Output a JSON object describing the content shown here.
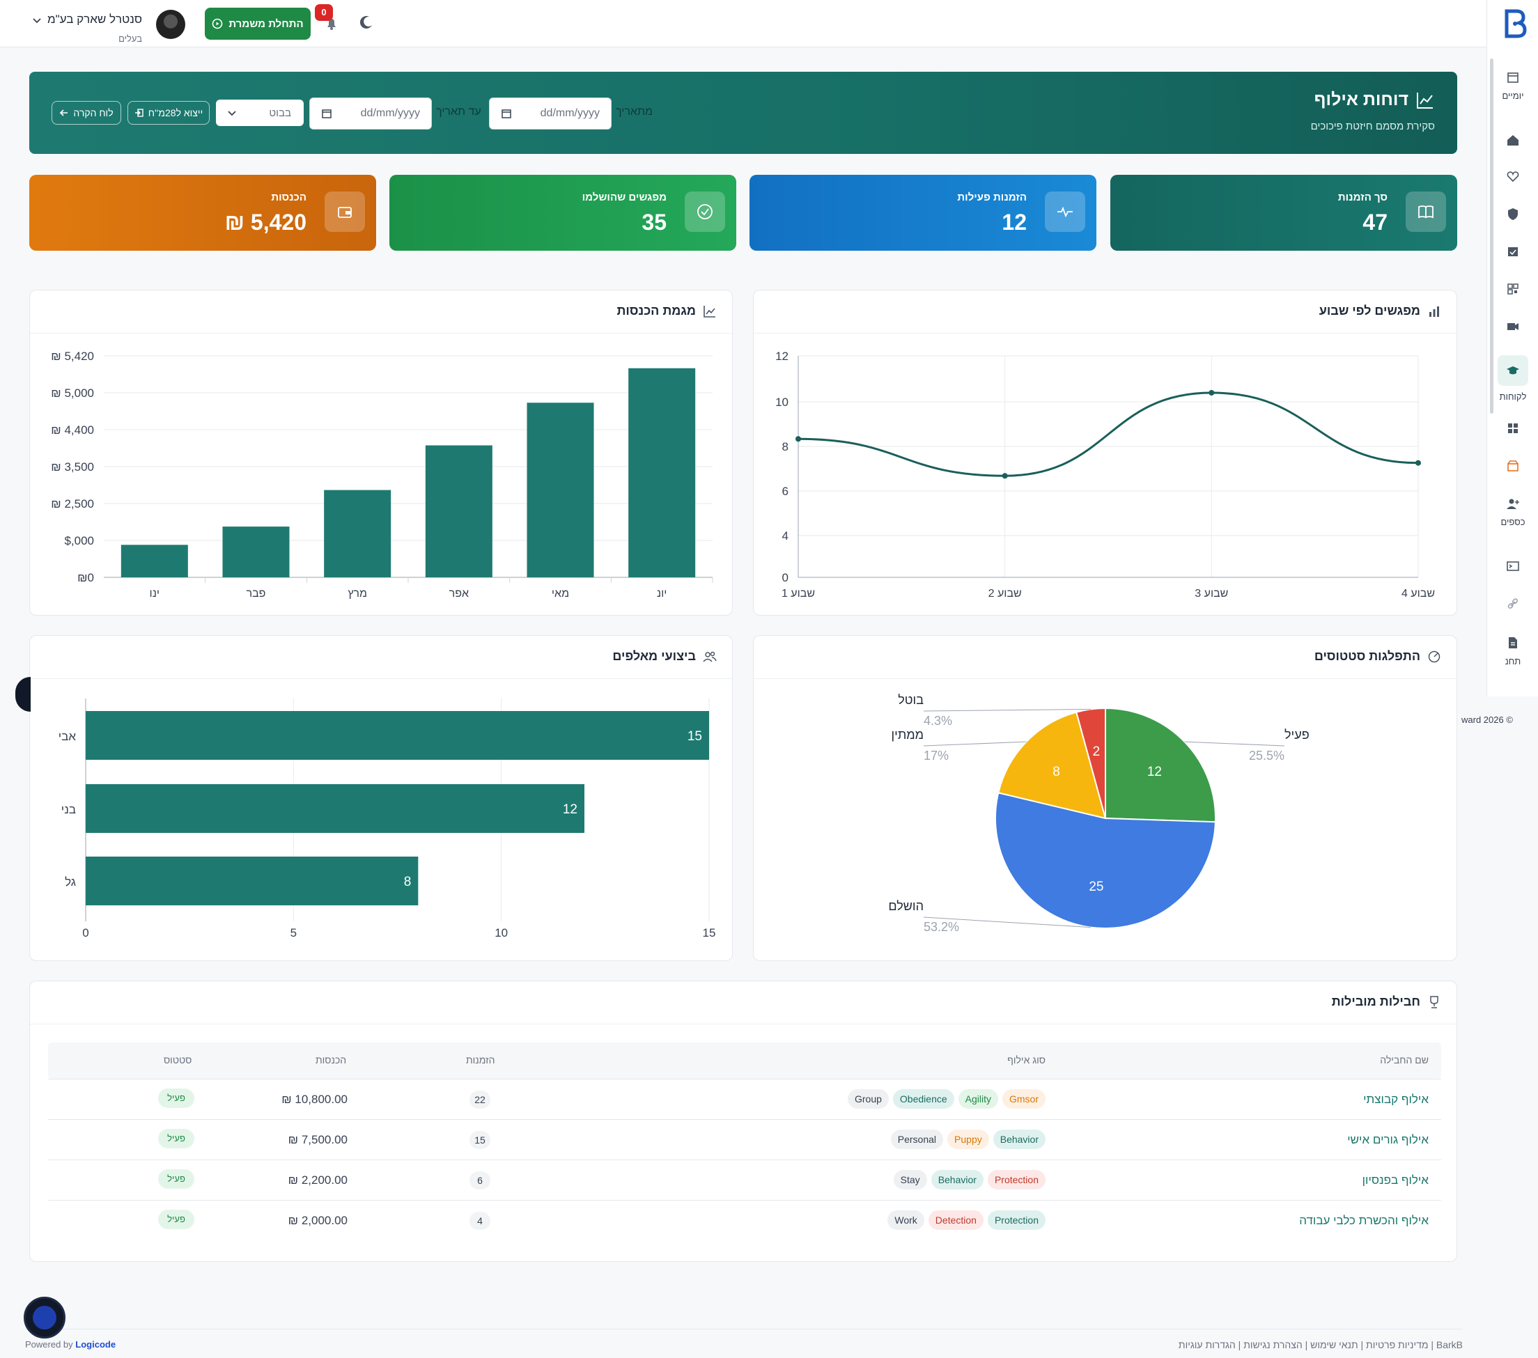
{
  "topbar": {
    "user_name": "סנטרל שארק בע\"מ",
    "user_role": "בעלים",
    "start_shift": "התחלת משמרת",
    "notif_count": "0"
  },
  "sidebar": {
    "items": [
      {
        "icon": "calendar-icon",
        "label": "יומיים"
      },
      {
        "icon": "home-icon",
        "label": ""
      },
      {
        "icon": "heart-icon",
        "label": ""
      },
      {
        "icon": "shield-icon",
        "label": ""
      },
      {
        "icon": "calendar-check-icon",
        "label": ""
      },
      {
        "icon": "qr-icon",
        "label": ""
      },
      {
        "icon": "video-icon",
        "label": ""
      },
      {
        "icon": "graduation-cap-icon",
        "label": "לקוחות"
      },
      {
        "icon": "grid-icon",
        "label": ""
      },
      {
        "icon": "pet-shop-icon",
        "label": ""
      },
      {
        "icon": "user-plus-icon",
        "label": "כספים"
      },
      {
        "icon": "terminal-icon",
        "label": ""
      },
      {
        "icon": "link-icon",
        "label": ""
      },
      {
        "icon": "document-icon",
        "label": "תחנ"
      }
    ]
  },
  "banner": {
    "title": "דוחות אילוף",
    "subtitle": "סקירת מסמם חיזטת פיכוכים",
    "from_label": "מתאריך",
    "from_placeholder": "dd/mm/yyyy",
    "to_label": "עד תאריך",
    "to_placeholder": "dd/mm/yyyy",
    "select_value": "בבוט",
    "export_button": "ייצוא ל28מ''ח",
    "back_button": "לוח הקרה"
  },
  "stats": [
    {
      "title": "סך הזמנות",
      "value": "47",
      "icon": "book-icon",
      "color": "#176f66"
    },
    {
      "title": "הזמנות פעילות",
      "value": "12",
      "icon": "pulse-icon",
      "color": "#1474c4"
    },
    {
      "title": "מפגשים שהושלמו",
      "value": "35",
      "icon": "check-circle-icon",
      "color": "#1e9a4c"
    },
    {
      "title": "הכנסות",
      "value": "5,420 ₪",
      "icon": "wallet-icon",
      "color": "#d9730f"
    }
  ],
  "panels": {
    "revenue": {
      "title": "מגמת הכנסות",
      "icon": "trend-icon"
    },
    "sessions": {
      "title": "מפגשים לפי שבוע",
      "icon": "bar-chart-icon"
    },
    "trainers": {
      "title": "ביצועי מאלפים",
      "icon": "users-icon"
    },
    "status": {
      "title": "התפלגות סטטוסים",
      "icon": "pie-icon"
    },
    "leaders": {
      "title": "חבילות מובילות",
      "icon": "trophy-icon"
    }
  },
  "chart_data": [
    {
      "type": "bar",
      "title": "מגמת הכנסות",
      "categories": [
        "ינו",
        "פבר",
        "מרץ",
        "אפר",
        "מאי",
        "יונ"
      ],
      "values": [
        800,
        1250,
        2150,
        3250,
        4300,
        5150
      ],
      "yticks": [
        "₪0",
        "$,000",
        "₪ 2,500",
        "₪ 3,500",
        "₪ 4,400",
        "₪ 5,000",
        "₪ 5,420"
      ],
      "color": "#1e7a70"
    },
    {
      "type": "line",
      "title": "מפגשים לפי שבוע",
      "categories": [
        "שבוע 1",
        "שבוע 2",
        "שבוע 3",
        "שבוע 4"
      ],
      "values": [
        7.5,
        5.5,
        10,
        6.2
      ],
      "yticks": [
        0,
        4,
        6,
        8,
        10,
        12
      ],
      "ylim": [
        0,
        12
      ],
      "color": "#1a5f5a"
    },
    {
      "type": "bar",
      "orientation": "horizontal",
      "title": "ביצועי מאלפים",
      "categories": [
        "אבי",
        "בני",
        "גל"
      ],
      "values": [
        15,
        12,
        8
      ],
      "xticks": [
        0,
        5,
        10,
        15
      ],
      "xlim": [
        0,
        15
      ],
      "color": "#1e7a70"
    },
    {
      "type": "pie",
      "title": "התפלגות סטטוסים",
      "slices": [
        {
          "label": "פעיל",
          "value": 12,
          "percent": "25.5%",
          "color": "#3c9c4a"
        },
        {
          "label": "הושלם",
          "value": 25,
          "percent": "53.2%",
          "color": "#3f7be0"
        },
        {
          "label": "ממתין",
          "value": 8,
          "percent": "17%",
          "color": "#f6b60e"
        },
        {
          "label": "בוטל",
          "value": 2,
          "percent": "4.3%",
          "color": "#e0463a"
        }
      ]
    }
  ],
  "table": {
    "headers": {
      "name": "שם החבילה",
      "type": "סוג אילוף",
      "orders": "הזמנות",
      "revenue": "הכנסות",
      "status": "סטטוס"
    },
    "rows": [
      {
        "name": "אילוף קבוצתי",
        "tags": [
          {
            "t": "Group",
            "c": "gray"
          },
          {
            "t": "Obedience",
            "c": "teal"
          },
          {
            "t": "Agility",
            "c": "green"
          },
          {
            "t": "Gmsor",
            "c": "orange"
          }
        ],
        "orders": "22",
        "revenue": "₪ 10,800.00",
        "status": "פעיל"
      },
      {
        "name": "אילוף גורים אישי",
        "tags": [
          {
            "t": "Personal",
            "c": "gray"
          },
          {
            "t": "Puppy",
            "c": "orange"
          },
          {
            "t": "Behavior",
            "c": "teal"
          }
        ],
        "orders": "15",
        "revenue": "₪ 7,500.00",
        "status": "פעיל"
      },
      {
        "name": "אילוף בפנסיון",
        "tags": [
          {
            "t": "Stay",
            "c": "gray"
          },
          {
            "t": "Behavior",
            "c": "teal"
          },
          {
            "t": "Protection",
            "c": "red"
          }
        ],
        "orders": "6",
        "revenue": "₪ 2,200.00",
        "status": "פעיל"
      },
      {
        "name": "אילוף והכשרת כלבי עבודה",
        "tags": [
          {
            "t": "Work",
            "c": "gray"
          },
          {
            "t": "Detection",
            "c": "red"
          },
          {
            "t": "Protection",
            "c": "teal"
          }
        ],
        "orders": "4",
        "revenue": "₪ 2,000.00",
        "status": "פעיל"
      }
    ]
  },
  "footer": {
    "powered": "Powered by",
    "brand": "Logicode",
    "links": "BarkB | מדיניות פרטיות | תנאי שימוש | הצהרת נגישות | הגדרות עוגיות",
    "copyright": "ward 2026 ©"
  }
}
